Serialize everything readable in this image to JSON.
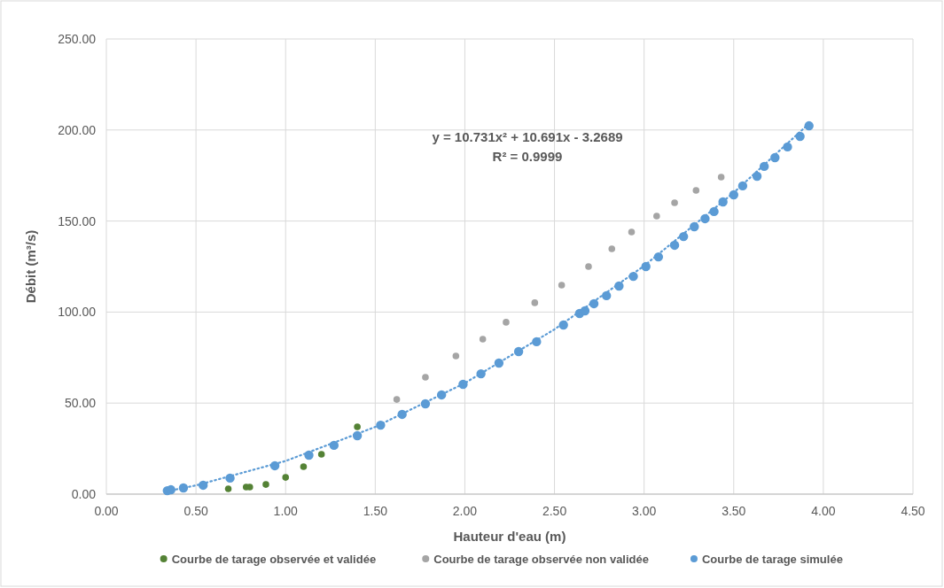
{
  "chart_data": {
    "type": "scatter",
    "xlabel": "Hauteur d'eau (m)",
    "ylabel": "Débit (m³/s)",
    "xlim": [
      0,
      4.5
    ],
    "ylim": [
      0,
      250
    ],
    "xticks": [
      {
        "value": 0,
        "label": "0.00"
      },
      {
        "value": 0.5,
        "label": "0.50"
      },
      {
        "value": 1,
        "label": "1.00"
      },
      {
        "value": 1.5,
        "label": "1.50"
      },
      {
        "value": 2,
        "label": "2.00"
      },
      {
        "value": 2.5,
        "label": "2.50"
      },
      {
        "value": 3,
        "label": "3.00"
      },
      {
        "value": 3.5,
        "label": "3.50"
      },
      {
        "value": 4,
        "label": "4.00"
      },
      {
        "value": 4.5,
        "label": "4.50"
      }
    ],
    "yticks": [
      {
        "value": 0,
        "label": "0.00"
      },
      {
        "value": 50,
        "label": "50.00"
      },
      {
        "value": 100,
        "label": "100.00"
      },
      {
        "value": 150,
        "label": "150.00"
      },
      {
        "value": 200,
        "label": "200.00"
      },
      {
        "value": 250,
        "label": "250.00"
      }
    ],
    "grid": true,
    "legend": "bottom",
    "marker": "circle",
    "annotations": [
      "y = 10.731x² + 10.691x - 3.2689",
      "R² = 0.9999"
    ],
    "series": [
      {
        "name": "Courbe de tarage observée et validée",
        "color": "#548235",
        "x": [
          0.68,
          0.78,
          0.8,
          0.89,
          1.0,
          1.1,
          1.2,
          1.4
        ],
        "values": [
          2.9,
          3.9,
          3.9,
          5.3,
          9.2,
          15.1,
          21.9,
          37.0
        ]
      },
      {
        "name": "Courbe de tarage observée non validée",
        "color": "#a5a5a5",
        "x": [
          1.62,
          1.78,
          1.95,
          2.1,
          2.23,
          2.39,
          2.54,
          2.69,
          2.82,
          2.93,
          3.07,
          3.17,
          3.29,
          3.43
        ],
        "values": [
          52.0,
          64.2,
          75.9,
          85.1,
          94.4,
          105.1,
          114.8,
          125.0,
          134.7,
          144.0,
          152.7,
          160.0,
          166.8,
          174.1
        ]
      },
      {
        "name": "Courbe de tarage simulée",
        "color": "#5b9bd5",
        "x": [
          0.34,
          0.36,
          0.43,
          0.54,
          0.69,
          0.94,
          1.13,
          1.27,
          1.4,
          1.53,
          1.65,
          1.78,
          1.87,
          1.99,
          2.09,
          2.19,
          2.3,
          2.4,
          2.55,
          2.64,
          2.67,
          2.72,
          2.79,
          2.86,
          2.94,
          3.01,
          3.08,
          3.17,
          3.22,
          3.28,
          3.34,
          3.39,
          3.44,
          3.5,
          3.55,
          3.63,
          3.67,
          3.73,
          3.8,
          3.87,
          3.92
        ],
        "values": [
          1.9,
          2.4,
          3.4,
          4.9,
          8.8,
          15.6,
          21.4,
          26.8,
          32.1,
          37.9,
          43.8,
          49.6,
          54.5,
          60.3,
          66.1,
          72.0,
          78.3,
          83.7,
          92.9,
          99.2,
          100.7,
          104.6,
          109.0,
          114.3,
          119.6,
          125.0,
          130.3,
          136.7,
          141.5,
          146.9,
          151.3,
          155.2,
          160.5,
          164.4,
          169.3,
          174.6,
          180.0,
          184.8,
          190.7,
          196.5,
          202.3
        ]
      },
      {
        "type": "line",
        "color": "#5b9bd5",
        "line_style": "dotted",
        "marker": "none",
        "x": [
          0.34,
          0.5,
          1.0,
          1.5,
          2.0,
          2.5,
          3.0,
          3.5,
          3.92
        ],
        "values": [
          1.6,
          4.8,
          18.2,
          36.9,
          61.0,
          90.5,
          125.4,
          165.6,
          203.5
        ]
      }
    ]
  }
}
